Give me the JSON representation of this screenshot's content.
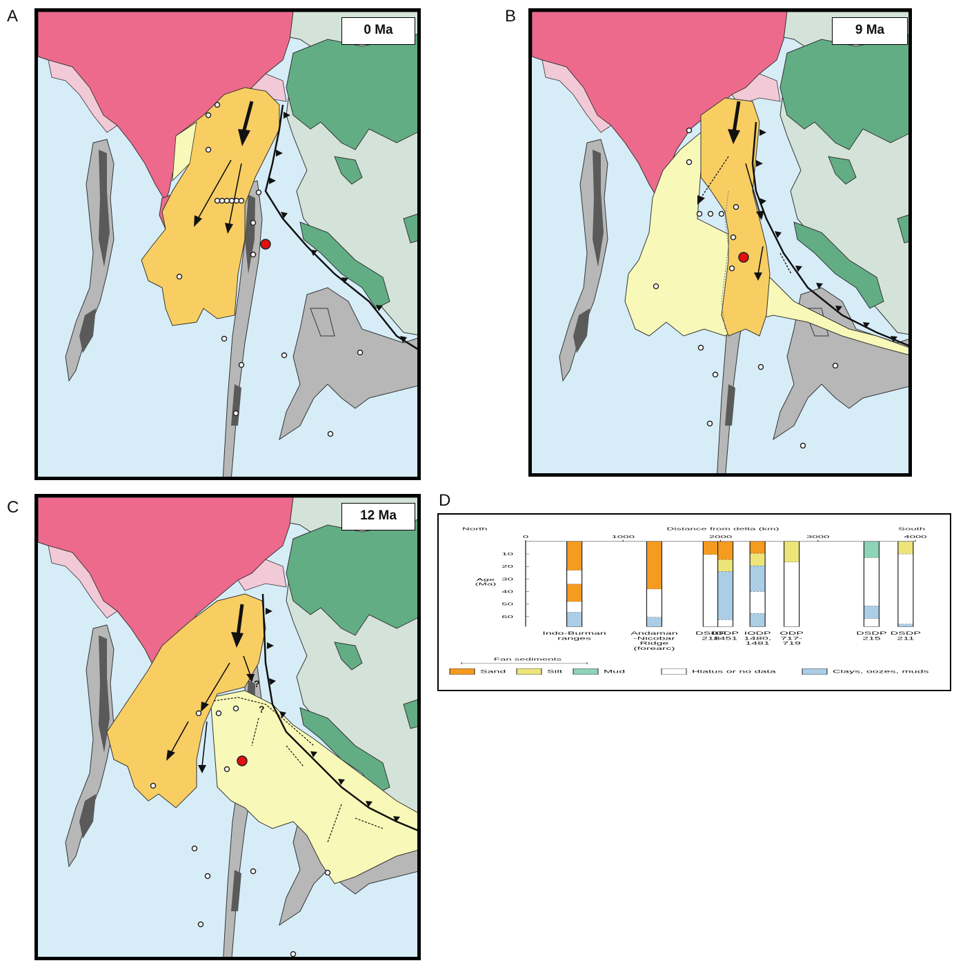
{
  "panels": {
    "a": {
      "letter": "A",
      "age": "0 Ma"
    },
    "b": {
      "letter": "B",
      "age": "9 Ma"
    },
    "c": {
      "letter": "C",
      "age": "12 Ma"
    },
    "d": {
      "letter": "D"
    }
  },
  "colors": {
    "ocean": "#d6edf8",
    "india": "#ee6a8c",
    "shelf_pink": "#f2c9d6",
    "asia_green": "#62ad84",
    "land_gray": "#d4e3d9",
    "ridge_gray": "#b7b7b7",
    "ridge_dark": "#5a5a5a",
    "fan_orange": "#f8ce63",
    "fan_yellow": "#f8f8b8",
    "sand": "#f59b1f",
    "silt": "#ede57a",
    "mud": "#8fd3b8",
    "hiatus": "#ffffff",
    "clays": "#abcde6"
  },
  "chart_d": {
    "left_label": "North",
    "right_label": "South",
    "x_title": "Distance from delta (km)",
    "x_ticks": [
      "0",
      "1000",
      "2000",
      "3000",
      "4000"
    ],
    "y_title_1": "Age",
    "y_title_2": "(Ma)",
    "y_ticks": [
      "10",
      "20",
      "30",
      "40",
      "50",
      "60"
    ],
    "columns": [
      {
        "label": [
          "Indo-Burman",
          "ranges"
        ]
      },
      {
        "label": [
          "Andaman",
          "-Nicobar",
          "Ridge",
          "(forearc)"
        ]
      },
      {
        "label": [
          "DSDP",
          "218"
        ]
      },
      {
        "label": [
          "IODP",
          "1451"
        ]
      },
      {
        "label": [
          "IODP",
          "1480,",
          "1481"
        ]
      },
      {
        "label": [
          "ODP",
          "717-",
          "719"
        ]
      },
      {
        "label": [
          "DSDP",
          "215"
        ]
      },
      {
        "label": [
          "DSDP",
          "211"
        ]
      }
    ],
    "legend": {
      "group_label": "Fan sediments",
      "items": [
        "Sand",
        "Silt",
        "Mud",
        "Hiatus or no data",
        "Clays, oozes, muds"
      ]
    }
  },
  "chart_data": {
    "type": "stacked column stratigraphy",
    "x_axis": {
      "title": "Distance from delta (km)",
      "range": [
        0,
        4000
      ]
    },
    "y_axis": {
      "title": "Age (Ma)",
      "range": [
        0,
        68
      ],
      "inverted": true
    },
    "series_names": [
      "Sand",
      "Silt",
      "Mud",
      "Hiatus or no data",
      "Clays, oozes, muds"
    ],
    "columns": [
      {
        "name": "Indo-Burman ranges",
        "distance_km": 500,
        "intervals": [
          [
            "Sand",
            0,
            23
          ],
          [
            "Hiatus or no data",
            23,
            34
          ],
          [
            "Sand",
            34,
            48
          ],
          [
            "Hiatus or no data",
            48,
            56.5
          ],
          [
            "Clays, oozes, muds",
            56.5,
            68
          ]
        ]
      },
      {
        "name": "Andaman-Nicobar Ridge (forearc)",
        "distance_km": 1320,
        "intervals": [
          [
            "Sand",
            0,
            38
          ],
          [
            "Hiatus or no data",
            38,
            60.5
          ],
          [
            "Clays, oozes, muds",
            60.5,
            68
          ]
        ]
      },
      {
        "name": "DSDP 218",
        "distance_km": 1900,
        "intervals": [
          [
            "Sand",
            0,
            10.5
          ],
          [
            "Hiatus or no data",
            10.5,
            68
          ]
        ]
      },
      {
        "name": "IODP 1451",
        "distance_km": 2050,
        "intervals": [
          [
            "Sand",
            0,
            14.5
          ],
          [
            "Silt",
            14.5,
            24
          ],
          [
            "Clays, oozes, muds",
            24,
            62.5
          ],
          [
            "Hiatus or no data",
            62.5,
            68
          ]
        ]
      },
      {
        "name": "IODP 1480, 1481",
        "distance_km": 2380,
        "intervals": [
          [
            "Sand",
            0,
            9.5
          ],
          [
            "Silt",
            9.5,
            19.5
          ],
          [
            "Clays, oozes, muds",
            19.5,
            40
          ],
          [
            "Hiatus or no data",
            40,
            57.5
          ],
          [
            "Clays, oozes, muds",
            57.5,
            68
          ]
        ]
      },
      {
        "name": "ODP 717-719",
        "distance_km": 2730,
        "intervals": [
          [
            "Silt",
            0,
            16.5
          ],
          [
            "Hiatus or no data",
            16.5,
            68
          ]
        ]
      },
      {
        "name": "DSDP 215",
        "distance_km": 3550,
        "intervals": [
          [
            "Mud",
            0,
            13
          ],
          [
            "Hiatus or no data",
            13,
            51.5
          ],
          [
            "Clays, oozes, muds",
            51.5,
            61.5
          ],
          [
            "Hiatus or no data",
            61.5,
            68
          ]
        ]
      },
      {
        "name": "DSDP 211",
        "distance_km": 3900,
        "intervals": [
          [
            "Silt",
            0,
            10
          ],
          [
            "Hiatus or no data",
            10,
            66
          ],
          [
            "Clays, oozes, muds",
            66,
            68
          ]
        ]
      }
    ]
  }
}
